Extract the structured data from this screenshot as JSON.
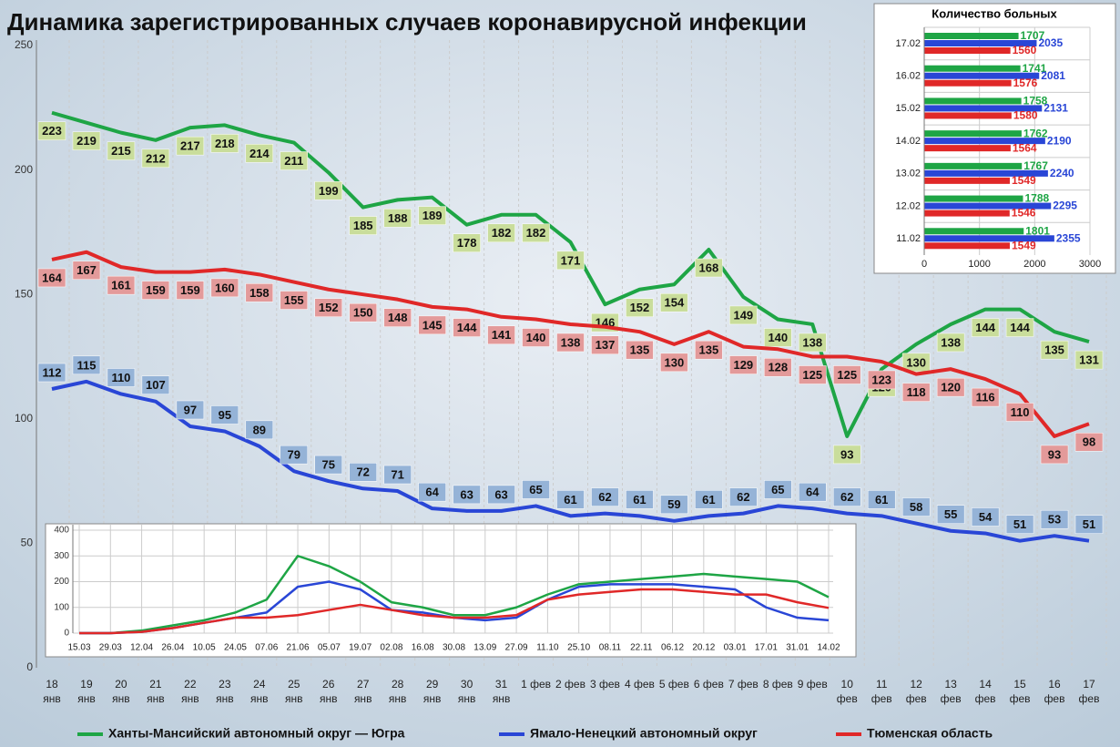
{
  "chart_data": [
    {
      "type": "line",
      "title": "Динамика зарегистрированных случаев коронавирусной инфекции",
      "categories": [
        [
          "18",
          "янв"
        ],
        [
          "19",
          "янв"
        ],
        [
          "20",
          "янв"
        ],
        [
          "21",
          "янв"
        ],
        [
          "22",
          "янв"
        ],
        [
          "23",
          "янв"
        ],
        [
          "24",
          "янв"
        ],
        [
          "25",
          "янв"
        ],
        [
          "26",
          "янв"
        ],
        [
          "27",
          "янв"
        ],
        [
          "28",
          "янв"
        ],
        [
          "29",
          "янв"
        ],
        [
          "30",
          "янв"
        ],
        [
          "31",
          "янв"
        ],
        [
          "1 фев"
        ],
        [
          "2 фев"
        ],
        [
          "3 фев"
        ],
        [
          "4 фев"
        ],
        [
          "5 фев"
        ],
        [
          "6 фев"
        ],
        [
          "7 фев"
        ],
        [
          "8 фев"
        ],
        [
          "9 фев"
        ],
        [
          "10",
          "фев"
        ],
        [
          "11",
          "фев"
        ],
        [
          "12",
          "фев"
        ],
        [
          "13",
          "фев"
        ],
        [
          "14",
          "фев"
        ],
        [
          "15",
          "фев"
        ],
        [
          "16",
          "фев"
        ],
        [
          "17",
          "фев"
        ]
      ],
      "series": [
        {
          "name": "Ханты-Мансийский автономный округ — Югра",
          "color": "#1ea545",
          "label_color": "#c9dd9b",
          "values": [
            223,
            219,
            215,
            212,
            217,
            218,
            214,
            211,
            199,
            185,
            188,
            189,
            178,
            182,
            182,
            171,
            146,
            152,
            154,
            168,
            149,
            140,
            138,
            93,
            120,
            130,
            138,
            144,
            144,
            135,
            131
          ]
        },
        {
          "name": "Ямало-Ненецкий автономный округ",
          "color": "#2946d6",
          "label_color": "#95b3d7",
          "values": [
            112,
            115,
            110,
            107,
            97,
            95,
            89,
            79,
            75,
            72,
            71,
            64,
            63,
            63,
            65,
            61,
            62,
            61,
            59,
            61,
            62,
            65,
            64,
            62,
            61,
            58,
            55,
            54,
            51,
            53,
            51
          ]
        },
        {
          "name": "Тюменская область",
          "color": "#e02828",
          "label_color": "#e39a9a",
          "values": [
            164,
            167,
            161,
            159,
            159,
            160,
            158,
            155,
            152,
            150,
            148,
            145,
            144,
            141,
            140,
            138,
            137,
            135,
            130,
            135,
            129,
            128,
            125,
            125,
            123,
            118,
            120,
            116,
            110,
            93,
            98
          ]
        }
      ],
      "ylim": [
        0,
        250
      ],
      "yticks": [
        0,
        50,
        100,
        150,
        200,
        250
      ],
      "grid": true
    },
    {
      "type": "barh",
      "title": "Количество больных",
      "categories": [
        "17.02",
        "16.02",
        "15.02",
        "14.02",
        "13.02",
        "12.02",
        "11.02"
      ],
      "series": [
        {
          "color": "#1ea545",
          "values": [
            1707,
            1741,
            1758,
            1762,
            1767,
            1788,
            1801
          ]
        },
        {
          "color": "#2946d6",
          "values": [
            2035,
            2081,
            2131,
            2190,
            2240,
            2295,
            2355
          ]
        },
        {
          "color": "#e02828",
          "values": [
            1560,
            1576,
            1580,
            1564,
            1549,
            1546,
            1549
          ]
        }
      ],
      "xlim": [
        0,
        3000
      ],
      "xticks": [
        0,
        1000,
        2000,
        3000
      ],
      "grid": true
    },
    {
      "type": "line",
      "categories": [
        "15.03",
        "29.03",
        "12.04",
        "26.04",
        "10.05",
        "24.05",
        "07.06",
        "21.06",
        "05.07",
        "19.07",
        "02.08",
        "16.08",
        "30.08",
        "13.09",
        "27.09",
        "11.10",
        "25.10",
        "08.11",
        "22.11",
        "06.12",
        "20.12",
        "03.01",
        "17.01",
        "31.01",
        "14.02"
      ],
      "series": [
        {
          "color": "#1ea545",
          "values": [
            0,
            0,
            10,
            30,
            50,
            80,
            130,
            300,
            260,
            200,
            120,
            100,
            70,
            70,
            100,
            150,
            190,
            200,
            210,
            220,
            230,
            220,
            210,
            200,
            140
          ]
        },
        {
          "color": "#2946d6",
          "values": [
            0,
            0,
            5,
            20,
            40,
            60,
            80,
            180,
            200,
            170,
            90,
            80,
            60,
            50,
            60,
            130,
            180,
            190,
            190,
            190,
            180,
            170,
            100,
            60,
            50
          ]
        },
        {
          "color": "#e02828",
          "values": [
            0,
            0,
            5,
            20,
            40,
            60,
            60,
            70,
            90,
            110,
            90,
            70,
            60,
            60,
            70,
            130,
            150,
            160,
            170,
            170,
            160,
            150,
            150,
            120,
            98
          ]
        }
      ],
      "ylim": [
        0,
        400
      ],
      "yticks": [
        0,
        100,
        200,
        300,
        400
      ],
      "grid": true
    }
  ]
}
